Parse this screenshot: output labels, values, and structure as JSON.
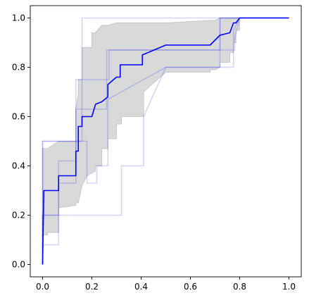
{
  "chart_data": {
    "type": "line",
    "title": "",
    "xlabel": "",
    "ylabel": "",
    "xlim": [
      -0.05,
      1.05
    ],
    "ylim": [
      -0.05,
      1.05
    ],
    "grid": false,
    "legend": "none",
    "xticks": [
      {
        "value": 0.0,
        "label": "0.0"
      },
      {
        "value": 0.2,
        "label": "0.2"
      },
      {
        "value": 0.4,
        "label": "0.4"
      },
      {
        "value": 0.6,
        "label": "0.6"
      },
      {
        "value": 0.8,
        "label": "0.8"
      },
      {
        "value": 1.0,
        "label": "1.0"
      }
    ],
    "yticks": [
      {
        "value": 0.0,
        "label": "0.0"
      },
      {
        "value": 0.2,
        "label": "0.2"
      },
      {
        "value": 0.4,
        "label": "0.4"
      },
      {
        "value": 0.6,
        "label": "0.6"
      },
      {
        "value": 0.8,
        "label": "0.8"
      },
      {
        "value": 1.0,
        "label": "1.0"
      }
    ],
    "colors": {
      "mean_line": "#0000ff",
      "fold_line": "#0000ff",
      "band_fill": "#d9d9d9",
      "band_edge": "#c8c8c8",
      "axis": "#000000"
    },
    "band": {
      "x": [
        0.0,
        0.0,
        0.0,
        0.0,
        0.0,
        0.02,
        0.02,
        0.065,
        0.065,
        0.065,
        0.135,
        0.135,
        0.145,
        0.145,
        0.16,
        0.16,
        0.18,
        0.18,
        0.2,
        0.2,
        0.215,
        0.215,
        0.24,
        0.24,
        0.265,
        0.265,
        0.3,
        0.3,
        0.32,
        0.32,
        0.41,
        0.41,
        0.5,
        0.68,
        0.68,
        0.7,
        0.72,
        0.72,
        0.76,
        0.76,
        0.775,
        0.775,
        0.785,
        0.785,
        0.8,
        0.8,
        1.0
      ],
      "lower": [
        0.0,
        0.0,
        0.1,
        0.12,
        0.12,
        0.12,
        0.13,
        0.13,
        0.23,
        0.23,
        0.24,
        0.25,
        0.25,
        0.25,
        0.32,
        0.32,
        0.36,
        0.36,
        0.37,
        0.37,
        0.38,
        0.4,
        0.4,
        0.47,
        0.47,
        0.51,
        0.51,
        0.57,
        0.57,
        0.6,
        0.6,
        0.7,
        0.78,
        0.78,
        0.79,
        0.79,
        0.8,
        0.82,
        0.82,
        0.86,
        0.86,
        0.9,
        0.9,
        0.95,
        0.95,
        1.0,
        1.0
      ],
      "upper": [
        0.0,
        0.0,
        0.47,
        0.47,
        0.47,
        0.47,
        0.47,
        0.5,
        0.5,
        0.5,
        0.5,
        0.63,
        0.69,
        0.75,
        0.75,
        0.88,
        0.88,
        0.88,
        0.88,
        0.94,
        0.94,
        0.94,
        0.97,
        0.97,
        0.97,
        0.97,
        0.98,
        0.98,
        0.98,
        0.98,
        0.98,
        0.98,
        0.98,
        0.99,
        0.99,
        0.99,
        1.0,
        1.0,
        1.0,
        1.0,
        1.0,
        1.0,
        1.0,
        1.0,
        1.0,
        1.0,
        1.0
      ]
    },
    "series": [
      {
        "role": "mean",
        "x": [
          0.0,
          0.005,
          0.005,
          0.065,
          0.065,
          0.135,
          0.135,
          0.145,
          0.145,
          0.16,
          0.16,
          0.18,
          0.18,
          0.2,
          0.2,
          0.215,
          0.215,
          0.24,
          0.265,
          0.265,
          0.3,
          0.315,
          0.315,
          0.405,
          0.405,
          0.5,
          0.68,
          0.72,
          0.76,
          0.775,
          0.785,
          0.785,
          0.8,
          0.8,
          1.0
        ],
        "y": [
          0.0,
          0.3,
          0.3,
          0.3,
          0.36,
          0.36,
          0.46,
          0.46,
          0.56,
          0.56,
          0.6,
          0.6,
          0.6,
          0.6,
          0.6,
          0.65,
          0.65,
          0.66,
          0.68,
          0.73,
          0.76,
          0.76,
          0.81,
          0.81,
          0.85,
          0.89,
          0.89,
          0.93,
          0.94,
          0.98,
          0.98,
          0.98,
          1.0,
          1.0,
          1.0
        ]
      },
      {
        "role": "fold",
        "x": [
          0.0,
          0.0,
          0.16,
          0.16,
          0.2,
          0.2,
          0.77,
          0.77,
          0.8,
          0.8,
          1.0
        ],
        "y": [
          0.0,
          0.5,
          0.5,
          1.0,
          1.0,
          1.0,
          1.0,
          1.0,
          1.0,
          1.0,
          1.0
        ]
      },
      {
        "role": "fold",
        "x": [
          0.0,
          0.0,
          0.065,
          0.065,
          0.135,
          0.135,
          0.215,
          0.215,
          0.27,
          0.27,
          0.78,
          0.78,
          0.8,
          1.0
        ],
        "y": [
          0.0,
          0.2,
          0.2,
          0.42,
          0.42,
          0.75,
          0.75,
          0.75,
          0.75,
          0.87,
          0.87,
          0.92,
          1.0,
          1.0
        ]
      },
      {
        "role": "fold",
        "x": [
          0.0,
          0.0,
          0.065,
          0.065,
          0.18,
          0.18,
          0.32,
          0.32,
          0.41,
          0.41,
          0.5,
          0.775,
          0.775,
          0.8,
          1.0
        ],
        "y": [
          0.0,
          0.2,
          0.2,
          0.2,
          0.2,
          0.2,
          0.2,
          0.4,
          0.4,
          0.6,
          0.8,
          0.8,
          0.95,
          1.0,
          1.0
        ]
      },
      {
        "role": "fold",
        "x": [
          0.0,
          0.0,
          0.065,
          0.065,
          0.135,
          0.135,
          0.16,
          0.18,
          0.18,
          0.22,
          0.22,
          0.265,
          0.265,
          0.5,
          0.68,
          0.68,
          0.72,
          0.72,
          0.8,
          1.0
        ],
        "y": [
          0.0,
          0.08,
          0.08,
          0.33,
          0.33,
          0.5,
          0.5,
          0.5,
          0.33,
          0.33,
          0.4,
          0.4,
          0.67,
          0.8,
          0.8,
          0.8,
          0.8,
          1.0,
          1.0,
          1.0
        ]
      },
      {
        "role": "fold",
        "x": [
          0.0,
          0.0,
          0.135,
          0.135,
          0.16,
          0.16,
          0.26,
          0.26,
          0.68,
          0.72,
          0.72,
          0.8,
          1.0
        ],
        "y": [
          0.0,
          0.5,
          0.5,
          0.63,
          0.63,
          0.63,
          0.63,
          0.87,
          0.87,
          0.87,
          1.0,
          1.0,
          1.0
        ]
      }
    ]
  }
}
